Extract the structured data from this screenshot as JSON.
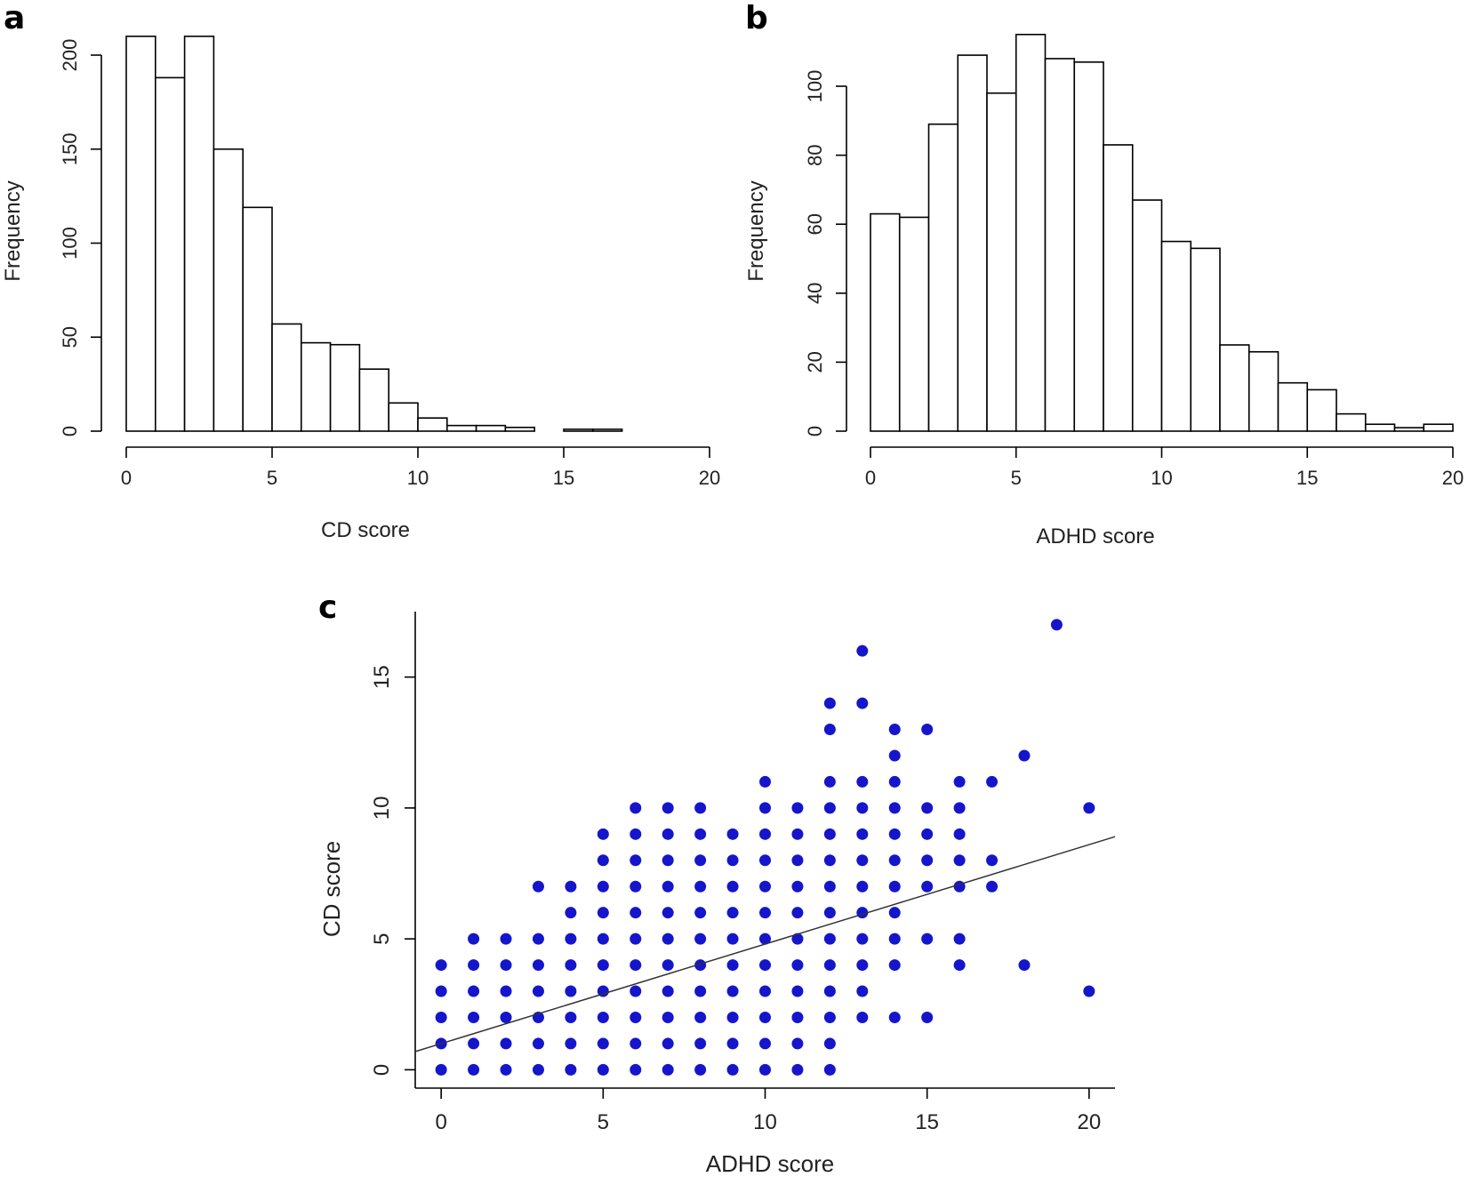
{
  "colors": {
    "bar_fill": "#ffffff",
    "bar_stroke": "#000000",
    "point": "#1515cc",
    "line": "#333333",
    "axis": "#000000"
  },
  "chart_data": [
    {
      "panel": "a",
      "type": "bar",
      "xlabel": "CD score",
      "ylabel": "Frequency",
      "xlim": [
        0,
        20
      ],
      "ylim": [
        0,
        200
      ],
      "xticks": [
        "0",
        "5",
        "10",
        "15",
        "20"
      ],
      "yticks": [
        "0",
        "50",
        "100",
        "150",
        "200"
      ],
      "bin_edges": [
        0,
        1,
        2,
        3,
        4,
        5,
        6,
        7,
        8,
        9,
        10,
        11,
        12,
        13,
        14,
        15,
        16,
        17,
        18,
        19,
        20
      ],
      "values": [
        210,
        188,
        210,
        150,
        119,
        57,
        47,
        46,
        33,
        15,
        7,
        3,
        3,
        2,
        0,
        1,
        1,
        0,
        0,
        0
      ]
    },
    {
      "panel": "b",
      "type": "bar",
      "xlabel": "ADHD score",
      "ylabel": "Frequency",
      "xlim": [
        0,
        20
      ],
      "ylim": [
        0,
        100
      ],
      "xticks": [
        "0",
        "5",
        "10",
        "15",
        "20"
      ],
      "yticks": [
        "0",
        "20",
        "40",
        "60",
        "80",
        "100"
      ],
      "bin_edges": [
        0,
        1,
        2,
        3,
        4,
        5,
        6,
        7,
        8,
        9,
        10,
        11,
        12,
        13,
        14,
        15,
        16,
        17,
        18,
        19,
        20
      ],
      "values": [
        63,
        62,
        89,
        109,
        98,
        115,
        108,
        107,
        83,
        67,
        55,
        53,
        25,
        23,
        14,
        12,
        5,
        2,
        1,
        2
      ]
    },
    {
      "panel": "c",
      "type": "scatter",
      "xlabel": "ADHD score",
      "ylabel": "CD score",
      "xlim": [
        -0.8,
        20.8
      ],
      "ylim": [
        -0.7,
        17.5
      ],
      "xticks": [
        "0",
        "5",
        "10",
        "15",
        "20"
      ],
      "yticks": [
        "0",
        "5",
        "10",
        "15"
      ],
      "regression_line": {
        "intercept": 1.0,
        "slope": 0.38
      },
      "columns": [
        {
          "x": 0,
          "y": [
            0,
            1,
            2,
            3,
            4
          ]
        },
        {
          "x": 1,
          "y": [
            0,
            1,
            2,
            3,
            4,
            5
          ]
        },
        {
          "x": 2,
          "y": [
            0,
            1,
            2,
            3,
            4,
            5
          ]
        },
        {
          "x": 3,
          "y": [
            0,
            1,
            2,
            3,
            4,
            5,
            7
          ]
        },
        {
          "x": 4,
          "y": [
            0,
            1,
            2,
            3,
            4,
            5,
            6,
            7
          ]
        },
        {
          "x": 5,
          "y": [
            0,
            1,
            2,
            3,
            4,
            5,
            6,
            7,
            8,
            9
          ]
        },
        {
          "x": 6,
          "y": [
            0,
            1,
            2,
            3,
            4,
            5,
            6,
            7,
            8,
            9,
            10
          ]
        },
        {
          "x": 7,
          "y": [
            0,
            1,
            2,
            3,
            4,
            5,
            6,
            7,
            8,
            9,
            10
          ]
        },
        {
          "x": 8,
          "y": [
            0,
            1,
            2,
            3,
            4,
            5,
            6,
            7,
            8,
            9,
            10
          ]
        },
        {
          "x": 9,
          "y": [
            0,
            1,
            2,
            3,
            4,
            5,
            6,
            7,
            8,
            9
          ]
        },
        {
          "x": 10,
          "y": [
            0,
            1,
            2,
            3,
            4,
            5,
            6,
            7,
            8,
            9,
            10,
            11
          ]
        },
        {
          "x": 11,
          "y": [
            0,
            1,
            2,
            3,
            4,
            5,
            6,
            7,
            8,
            9,
            10
          ]
        },
        {
          "x": 12,
          "y": [
            0,
            1,
            2,
            3,
            4,
            5,
            6,
            7,
            8,
            9,
            10,
            11,
            13,
            14
          ]
        },
        {
          "x": 13,
          "y": [
            2,
            3,
            4,
            5,
            6,
            7,
            8,
            9,
            10,
            11,
            14,
            16
          ]
        },
        {
          "x": 14,
          "y": [
            2,
            4,
            5,
            6,
            7,
            8,
            9,
            10,
            11,
            12,
            13
          ]
        },
        {
          "x": 15,
          "y": [
            2,
            5,
            7,
            8,
            9,
            10,
            13
          ]
        },
        {
          "x": 16,
          "y": [
            4,
            5,
            7,
            8,
            9,
            10,
            11
          ]
        },
        {
          "x": 17,
          "y": [
            7,
            8,
            11
          ]
        },
        {
          "x": 18,
          "y": [
            4,
            12
          ]
        },
        {
          "x": 19,
          "y": [
            17
          ]
        },
        {
          "x": 20,
          "y": [
            3,
            10
          ]
        }
      ]
    }
  ]
}
